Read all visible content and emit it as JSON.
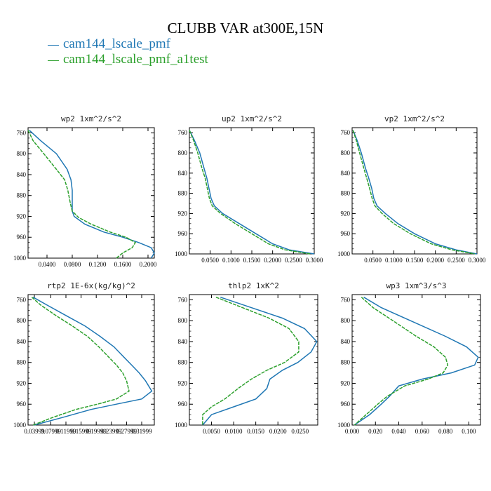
{
  "title": "CLUBB VAR at300E,15N",
  "legend": [
    {
      "label": "cam144_lscale_pmf",
      "color": "#1f77b4"
    },
    {
      "label": "cam144_lscale_pmf_a1test",
      "color": "#2ca02c"
    }
  ],
  "chart_data": [
    {
      "type": "line",
      "title": "wp2  1xm^2/s^2",
      "xlim": [
        0.01,
        0.21
      ],
      "ylim": [
        1000,
        750
      ],
      "xticks": [
        0.04,
        0.08,
        0.12,
        0.16,
        0.2
      ],
      "xtick_labels": [
        "0.0400",
        "0.0800",
        "0.1200",
        "0.1600",
        "0.2000"
      ],
      "yticks": [
        760,
        800,
        840,
        880,
        920,
        960,
        1000
      ],
      "ytick_labels": [
        "760",
        "800",
        "840",
        "880",
        "920",
        "960",
        "1000"
      ],
      "series": [
        {
          "name": "cam144_lscale_pmf",
          "color": "#1f77b4",
          "x": [
            0.012,
            0.03,
            0.055,
            0.072,
            0.078,
            0.08,
            0.08,
            0.08,
            0.083,
            0.1,
            0.13,
            0.16,
            0.185,
            0.205,
            0.21,
            0.205
          ],
          "y": [
            755,
            775,
            800,
            830,
            850,
            870,
            895,
            910,
            920,
            935,
            950,
            960,
            970,
            980,
            990,
            1000
          ]
        },
        {
          "name": "cam144_lscale_pmf_a1test",
          "color": "#2ca02c",
          "x": [
            0.01,
            0.018,
            0.035,
            0.055,
            0.068,
            0.073,
            0.077,
            0.08,
            0.09,
            0.11,
            0.14,
            0.165,
            0.18,
            0.175,
            0.16,
            0.15
          ],
          "y": [
            755,
            775,
            800,
            830,
            850,
            870,
            895,
            910,
            922,
            935,
            950,
            960,
            970,
            980,
            990,
            1000
          ]
        }
      ]
    },
    {
      "type": "line",
      "title": "up2  1xm^2/s^2",
      "xlim": [
        0.0,
        0.3
      ],
      "ylim": [
        1000,
        750
      ],
      "xticks": [
        0.05,
        0.1,
        0.15,
        0.2,
        0.25,
        0.3
      ],
      "xtick_labels": [
        "0.0500",
        "0.1000",
        "0.1500",
        "0.2000",
        "0.2500",
        "0.3000"
      ],
      "yticks": [
        760,
        800,
        840,
        880,
        920,
        960,
        1000
      ],
      "ytick_labels": [
        "760",
        "800",
        "840",
        "880",
        "920",
        "960",
        "1000"
      ],
      "series": [
        {
          "name": "cam144_lscale_pmf",
          "color": "#1f77b4",
          "x": [
            0.0,
            0.012,
            0.025,
            0.035,
            0.042,
            0.047,
            0.052,
            0.06,
            0.08,
            0.12,
            0.16,
            0.2,
            0.24,
            0.3
          ],
          "y": [
            755,
            775,
            800,
            830,
            850,
            870,
            890,
            905,
            920,
            940,
            960,
            980,
            992,
            1000
          ]
        },
        {
          "name": "cam144_lscale_pmf_a1test",
          "color": "#2ca02c",
          "x": [
            0.0,
            0.01,
            0.02,
            0.03,
            0.038,
            0.043,
            0.048,
            0.055,
            0.075,
            0.11,
            0.15,
            0.19,
            0.23,
            0.29
          ],
          "y": [
            755,
            775,
            800,
            830,
            850,
            870,
            890,
            905,
            920,
            940,
            960,
            980,
            992,
            1000
          ]
        }
      ]
    },
    {
      "type": "line",
      "title": "vp2  1xm^2/s^2",
      "xlim": [
        0.0,
        0.3
      ],
      "ylim": [
        1000,
        750
      ],
      "xticks": [
        0.05,
        0.1,
        0.15,
        0.2,
        0.25,
        0.3
      ],
      "xtick_labels": [
        "0.0500",
        "0.1000",
        "0.1500",
        "0.2000",
        "0.2500",
        "0.3000"
      ],
      "yticks": [
        760,
        800,
        840,
        880,
        920,
        960,
        1000
      ],
      "ytick_labels": [
        "760",
        "800",
        "840",
        "880",
        "920",
        "960",
        "1000"
      ],
      "series": [
        {
          "name": "cam144_lscale_pmf",
          "color": "#1f77b4",
          "x": [
            0.002,
            0.012,
            0.022,
            0.032,
            0.04,
            0.047,
            0.052,
            0.06,
            0.08,
            0.11,
            0.15,
            0.2,
            0.25,
            0.3
          ],
          "y": [
            755,
            775,
            800,
            830,
            850,
            870,
            890,
            905,
            920,
            940,
            960,
            980,
            992,
            1000
          ]
        },
        {
          "name": "cam144_lscale_pmf_a1test",
          "color": "#2ca02c",
          "x": [
            0.002,
            0.01,
            0.018,
            0.028,
            0.035,
            0.042,
            0.048,
            0.055,
            0.072,
            0.1,
            0.14,
            0.19,
            0.24,
            0.295
          ],
          "y": [
            755,
            775,
            800,
            830,
            850,
            870,
            890,
            905,
            920,
            940,
            960,
            980,
            992,
            1000
          ]
        }
      ]
    },
    {
      "type": "line",
      "title": "rtp2  1E-6x(kg/kg)^2",
      "xlim": [
        0.0,
        1.0
      ],
      "ylim": [
        1000,
        750
      ],
      "xticks": [
        0.05,
        0.18,
        0.3,
        0.42,
        0.54,
        0.66,
        0.78,
        0.9
      ],
      "xtick_labels": [
        "0.03999",
        "0.07999",
        "0.11999",
        "0.15999",
        "0.19999",
        "0.23999",
        "0.27999",
        "0.31999"
      ],
      "yticks": [
        760,
        800,
        840,
        880,
        920,
        960,
        1000
      ],
      "ytick_labels": [
        "760",
        "800",
        "840",
        "880",
        "920",
        "960",
        "1000"
      ],
      "series": [
        {
          "name": "cam144_lscale_pmf",
          "color": "#1f77b4",
          "x": [
            0.04,
            0.15,
            0.3,
            0.45,
            0.57,
            0.68,
            0.76,
            0.82,
            0.88,
            0.93,
            0.98,
            0.9,
            0.7,
            0.5,
            0.28,
            0.05
          ],
          "y": [
            755,
            770,
            790,
            810,
            830,
            850,
            870,
            885,
            900,
            915,
            935,
            950,
            960,
            970,
            985,
            1000
          ]
        },
        {
          "name": "cam144_lscale_pmf_a1test",
          "color": "#2ca02c",
          "x": [
            0.03,
            0.1,
            0.22,
            0.35,
            0.47,
            0.56,
            0.64,
            0.7,
            0.75,
            0.78,
            0.8,
            0.7,
            0.55,
            0.38,
            0.2,
            0.04
          ],
          "y": [
            755,
            770,
            790,
            810,
            830,
            850,
            870,
            885,
            900,
            915,
            935,
            950,
            960,
            970,
            985,
            1000
          ]
        }
      ]
    },
    {
      "type": "line",
      "title": "thlp2  1xK^2",
      "xlim": [
        0.0,
        0.029
      ],
      "ylim": [
        1000,
        750
      ],
      "xticks": [
        0.005,
        0.01,
        0.015,
        0.02,
        0.025
      ],
      "xtick_labels": [
        "0.0050",
        "0.0100",
        "0.0150",
        "0.0200",
        "0.0250"
      ],
      "yticks": [
        760,
        800,
        840,
        880,
        920,
        960,
        1000
      ],
      "ytick_labels": [
        "760",
        "800",
        "840",
        "880",
        "920",
        "960",
        "1000"
      ],
      "series": [
        {
          "name": "cam144_lscale_pmf",
          "color": "#1f77b4",
          "x": [
            0.007,
            0.014,
            0.021,
            0.026,
            0.0288,
            0.0275,
            0.0245,
            0.021,
            0.0182,
            0.0175,
            0.015,
            0.01,
            0.005,
            0.003
          ],
          "y": [
            755,
            775,
            795,
            815,
            840,
            860,
            880,
            895,
            912,
            930,
            950,
            965,
            980,
            1000
          ]
        },
        {
          "name": "cam144_lscale_pmf_a1test",
          "color": "#2ca02c",
          "x": [
            0.006,
            0.012,
            0.018,
            0.0225,
            0.0247,
            0.0247,
            0.0215,
            0.0175,
            0.014,
            0.011,
            0.008,
            0.005,
            0.003,
            0.003
          ],
          "y": [
            755,
            775,
            795,
            815,
            840,
            860,
            880,
            895,
            912,
            930,
            950,
            965,
            980,
            1000
          ]
        }
      ]
    },
    {
      "type": "line",
      "title": "wp3  1xm^3/s^3",
      "xlim": [
        0.0,
        0.11
      ],
      "ylim": [
        1000,
        750
      ],
      "xticks": [
        0.0,
        0.02,
        0.04,
        0.06,
        0.08,
        0.1
      ],
      "xtick_labels": [
        "0.000",
        "0.020",
        "0.040",
        "0.060",
        "0.080",
        "0.100"
      ],
      "yticks": [
        760,
        800,
        840,
        880,
        920,
        960,
        1000
      ],
      "ytick_labels": [
        "760",
        "800",
        "840",
        "880",
        "920",
        "960",
        "1000"
      ],
      "series": [
        {
          "name": "cam144_lscale_pmf",
          "color": "#1f77b4",
          "x": [
            0.01,
            0.025,
            0.05,
            0.08,
            0.098,
            0.108,
            0.105,
            0.085,
            0.06,
            0.04,
            0.032,
            0.025,
            0.015,
            0.002
          ],
          "y": [
            755,
            775,
            800,
            830,
            850,
            870,
            885,
            900,
            912,
            925,
            945,
            960,
            980,
            1000
          ]
        },
        {
          "name": "cam144_lscale_pmf_a1test",
          "color": "#2ca02c",
          "x": [
            0.008,
            0.018,
            0.035,
            0.055,
            0.07,
            0.08,
            0.082,
            0.078,
            0.065,
            0.045,
            0.03,
            0.022,
            0.012,
            0.002
          ],
          "y": [
            755,
            775,
            800,
            830,
            850,
            870,
            885,
            900,
            912,
            925,
            945,
            960,
            980,
            1000
          ]
        }
      ]
    }
  ]
}
